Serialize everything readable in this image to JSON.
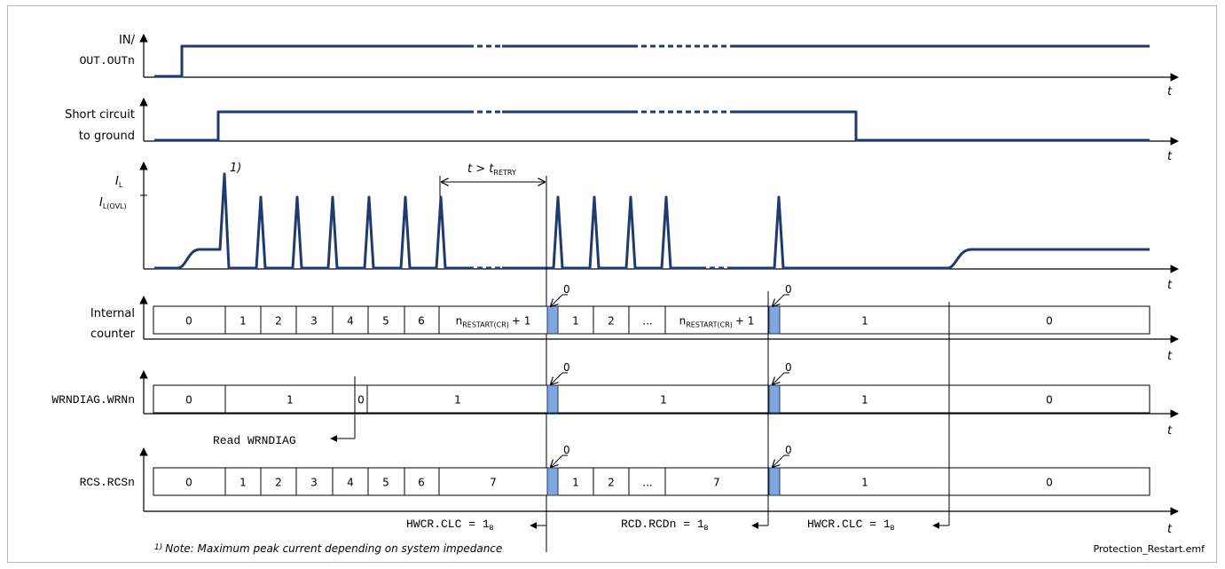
{
  "signals": {
    "in_out_line1": "IN/",
    "in_out_line2": "OUT.OUTn",
    "short_line1": "Short circuit",
    "short_line2": "to ground",
    "il_main": "I",
    "il_sub": "L",
    "ilovl_main": "I",
    "ilovl_sub": "L(OVL)",
    "counter_line1": "Internal",
    "counter_line2": "counter",
    "wrndiag": "WRNDIAG.WRNn",
    "rcs": "RCS.RCSn"
  },
  "axis_t": "t",
  "footnote_marker": "1)",
  "retry_label": {
    "t": "t",
    "gt": " > ",
    "tr": "t",
    "sub": "RETRY"
  },
  "counter_cells": [
    "0",
    "1",
    "2",
    "3",
    "4",
    "5",
    "6",
    "n",
    "1",
    "2",
    "...",
    "n",
    "1",
    "0"
  ],
  "nrestart": {
    "n": "n",
    "sub": "RESTART(CR)",
    "plus": "+ 1"
  },
  "wrn_cells": [
    "0",
    "1",
    "0",
    "1",
    "1",
    "1",
    "0"
  ],
  "rcs_cells": [
    "0",
    "1",
    "2",
    "3",
    "4",
    "5",
    "6",
    "7",
    "1",
    "2",
    "...",
    "7",
    "1",
    "0"
  ],
  "zero_marker": "0",
  "read_wrndiag": "Read WRNDIAG",
  "bottom_labels": {
    "hwcr1": "HWCR.CLC = 1",
    "rcd": "RCD.RCDn = 1",
    "hwcr2": "HWCR.CLC = 1",
    "sub_b": "B"
  },
  "note": "Note: Maximum peak current depending on system impedance",
  "filename": "Protection_Restart.emf",
  "colors": {
    "signal": "#1f3a6e",
    "marker": "#7fa7de"
  }
}
